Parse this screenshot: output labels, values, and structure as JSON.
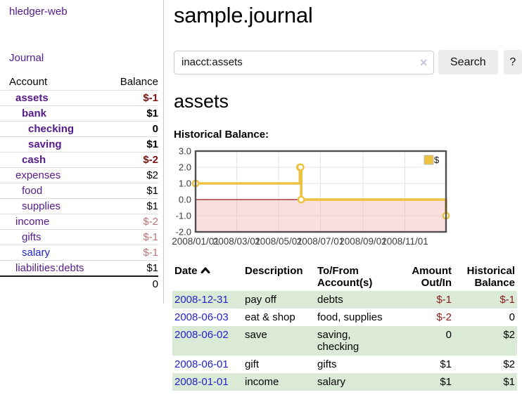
{
  "app": {
    "brand": "hledger-web",
    "nav": {
      "journal": "Journal"
    }
  },
  "sidebar": {
    "table": {
      "headers": {
        "account": "Account",
        "balance": "Balance"
      },
      "rows": [
        {
          "account": "assets",
          "balance": "$-1"
        },
        {
          "account": "bank",
          "balance": "$1"
        },
        {
          "account": "checking",
          "balance": "0"
        },
        {
          "account": "saving",
          "balance": "$1"
        },
        {
          "account": "cash",
          "balance": "$-2"
        },
        {
          "account": "expenses",
          "balance": "$2"
        },
        {
          "account": "food",
          "balance": "$1"
        },
        {
          "account": "supplies",
          "balance": "$1"
        },
        {
          "account": "income",
          "balance": "$-2"
        },
        {
          "account": "gifts",
          "balance": "$-1"
        },
        {
          "account": "salary",
          "balance": "$-1"
        },
        {
          "account": "liabilities:debts",
          "balance": "$1"
        }
      ],
      "total": "0"
    }
  },
  "main": {
    "title": "sample.journal",
    "search": {
      "value": "inacct:assets",
      "clear_icon": "✕",
      "button_label": "Search",
      "help_label": "?"
    },
    "account_heading": "assets",
    "chart_label": "Historical Balance:",
    "transactions": {
      "headers": {
        "date": "Date",
        "description": "Description",
        "accounts": "To/From Account(s)",
        "amount": "Amount Out/In",
        "balance": "Historical Balance"
      },
      "rows": [
        {
          "date": "2008-12-31",
          "description": "pay off",
          "accounts": "debts",
          "amount": "$-1",
          "balance": "$-1"
        },
        {
          "date": "2008-06-03",
          "description": "eat & shop",
          "accounts": "food, supplies",
          "amount": "$-2",
          "balance": "0"
        },
        {
          "date": "2008-06-02",
          "description": "save",
          "accounts": "saving, checking",
          "amount": "0",
          "balance": "$2"
        },
        {
          "date": "2008-06-01",
          "description": "gift",
          "accounts": "gifts",
          "amount": "$1",
          "balance": "$2"
        },
        {
          "date": "2008-01-01",
          "description": "income",
          "accounts": "salary",
          "amount": "$1",
          "balance": "$1"
        }
      ]
    }
  },
  "chart_data": {
    "type": "line",
    "steps": true,
    "title": "Historical Balance:",
    "series": [
      {
        "name": "$",
        "color": "#EDC240",
        "points": [
          [
            "2008-01-01",
            1
          ],
          [
            "2008-06-01",
            2
          ],
          [
            "2008-06-02",
            2
          ],
          [
            "2008-06-03",
            0
          ],
          [
            "2008-12-31",
            -1
          ]
        ]
      }
    ],
    "xlim": [
      "2008-01-01",
      "2008-12-31"
    ],
    "ylim": [
      -2,
      3
    ],
    "x_ticks": [
      "2008/01/01",
      "2008/03/01",
      "2008/05/01",
      "2008/07/01",
      "2008/09/01",
      "2008/11/01"
    ],
    "y_ticks": [
      "3.0",
      "2.0",
      "1.0",
      "0.0",
      "-1.0",
      "-2.0"
    ],
    "legend": {
      "position": "top-right",
      "label": "$"
    },
    "grid": true,
    "colors": {
      "grid": "#e4e4e4",
      "border": "#4f4f4f",
      "negative_region": "#f7b9b9",
      "zero_line": "#8b1a1a",
      "marker_fill": "#ffffff",
      "tick_text": "#3c3c3c"
    }
  }
}
